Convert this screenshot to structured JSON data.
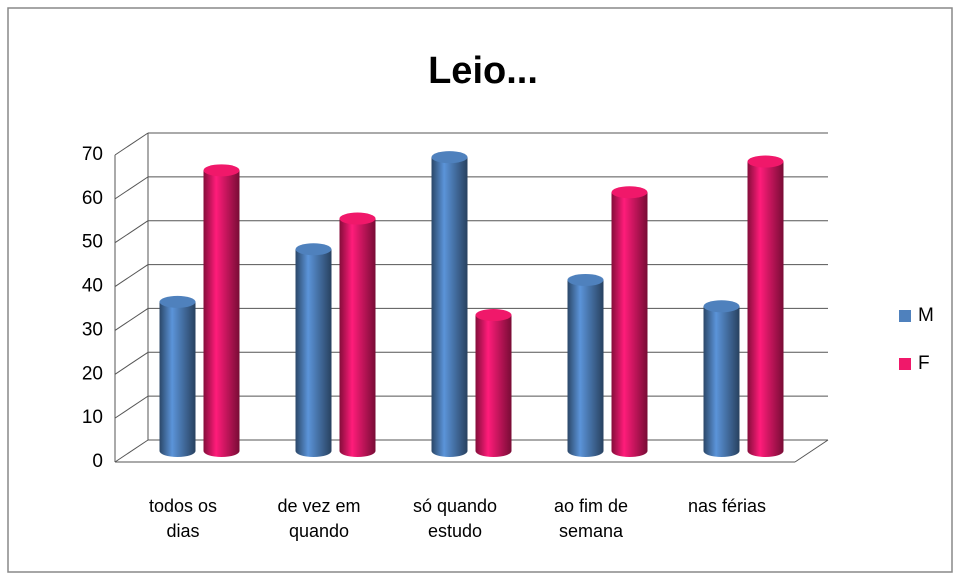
{
  "chart_data": {
    "type": "bar3d",
    "title": "Leio...",
    "categories": [
      "todos os dias",
      "de vez em quando",
      "só quando estudo",
      "ao fim de semana",
      "nas férias"
    ],
    "series": [
      {
        "name": "M",
        "color": "#4f81bd",
        "values": [
          34,
          46,
          67,
          39,
          33
        ]
      },
      {
        "name": "F",
        "color": "#f0186a",
        "values": [
          64,
          53,
          31,
          59,
          66
        ]
      }
    ],
    "ylim": [
      0,
      70
    ],
    "yticks": [
      0,
      10,
      20,
      30,
      40,
      50,
      60,
      70
    ],
    "grid": true,
    "legend": "right"
  }
}
